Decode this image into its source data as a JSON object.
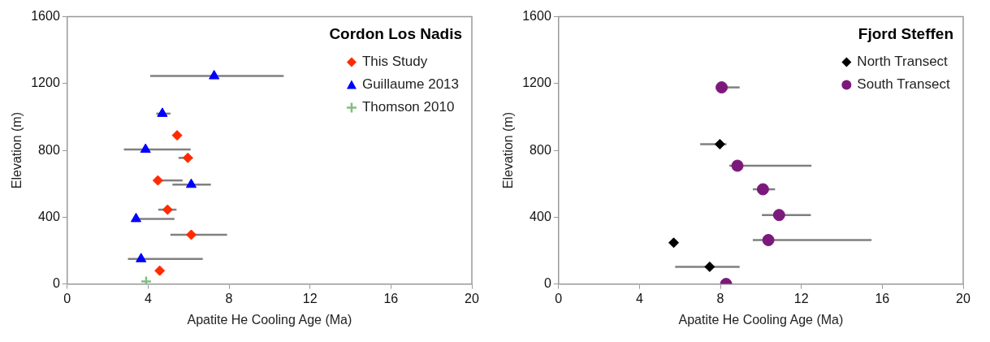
{
  "chart_data": [
    {
      "type": "scatter",
      "legend_title": "Cordon Los Nadis",
      "xlabel": "Apatite He Cooling Age (Ma)",
      "ylabel": "Elevation (m)",
      "xlim": [
        0,
        20
      ],
      "xticks": [
        0,
        4,
        8,
        12,
        16,
        20
      ],
      "ylim": [
        0,
        1600
      ],
      "yticks": [
        0,
        400,
        800,
        1200,
        1600
      ],
      "grid": false,
      "legend": "top right",
      "series": [
        {
          "name": "This Study",
          "color": "#ff2a00",
          "marker": "diamond",
          "x": [
            5.43,
            5.96,
            4.48,
            4.96,
            6.13,
            4.57
          ],
          "values": [
            890,
            755,
            620,
            445,
            295,
            80
          ],
          "xerrors": [
            null,
            [
              5.5,
              6.2
            ],
            [
              4.48,
              5.7
            ],
            [
              4.5,
              5.4
            ],
            [
              5.1,
              7.9
            ],
            null
          ]
        },
        {
          "name": "Guillaume 2013",
          "color": "#0000ff",
          "marker": "triangle",
          "x": [
            7.26,
            4.7,
            3.87,
            6.13,
            3.4,
            3.65
          ],
          "values": [
            1245,
            1020,
            805,
            595,
            390,
            150
          ],
          "xerrors": [
            [
              4.1,
              10.7
            ],
            [
              4.4,
              5.1
            ],
            [
              2.8,
              6.1
            ],
            [
              5.2,
              7.1
            ],
            [
              3.4,
              5.3
            ],
            [
              3.0,
              6.7
            ]
          ]
        },
        {
          "name": "Thomson 2010",
          "color": "#7fbf7f",
          "marker": "cross",
          "x": [
            3.9
          ],
          "values": [
            15
          ],
          "xerrors": [
            null
          ]
        }
      ]
    },
    {
      "type": "scatter",
      "legend_title": "Fjord Steffen",
      "xlabel": "Apatite He Cooling Age (Ma)",
      "ylabel": "Elevation (m)",
      "xlim": [
        0,
        20
      ],
      "xticks": [
        0,
        4,
        8,
        12,
        16,
        20
      ],
      "ylim": [
        0,
        1600
      ],
      "yticks": [
        0,
        400,
        800,
        1200,
        1600
      ],
      "grid": false,
      "legend": "top right",
      "series": [
        {
          "name": "North Transect",
          "color": "#000000",
          "marker": "diamond",
          "x": [
            7.97,
            5.69,
            7.47
          ],
          "values": [
            837,
            247,
            103
          ],
          "xerrors": [
            [
              7.0,
              8.3
            ],
            null,
            [
              5.76,
              8.95
            ]
          ]
        },
        {
          "name": "South Transect",
          "color": "#7b1a7b",
          "marker": "circle",
          "x": [
            8.06,
            8.84,
            10.1,
            10.9,
            10.37,
            8.28
          ],
          "values": [
            1177,
            708,
            567,
            413,
            263,
            0
          ],
          "xerrors": [
            [
              7.9,
              8.95
            ],
            [
              8.44,
              12.5
            ],
            [
              9.6,
              10.7
            ],
            [
              10.05,
              12.47
            ],
            [
              9.6,
              15.47
            ],
            null
          ]
        }
      ]
    }
  ]
}
